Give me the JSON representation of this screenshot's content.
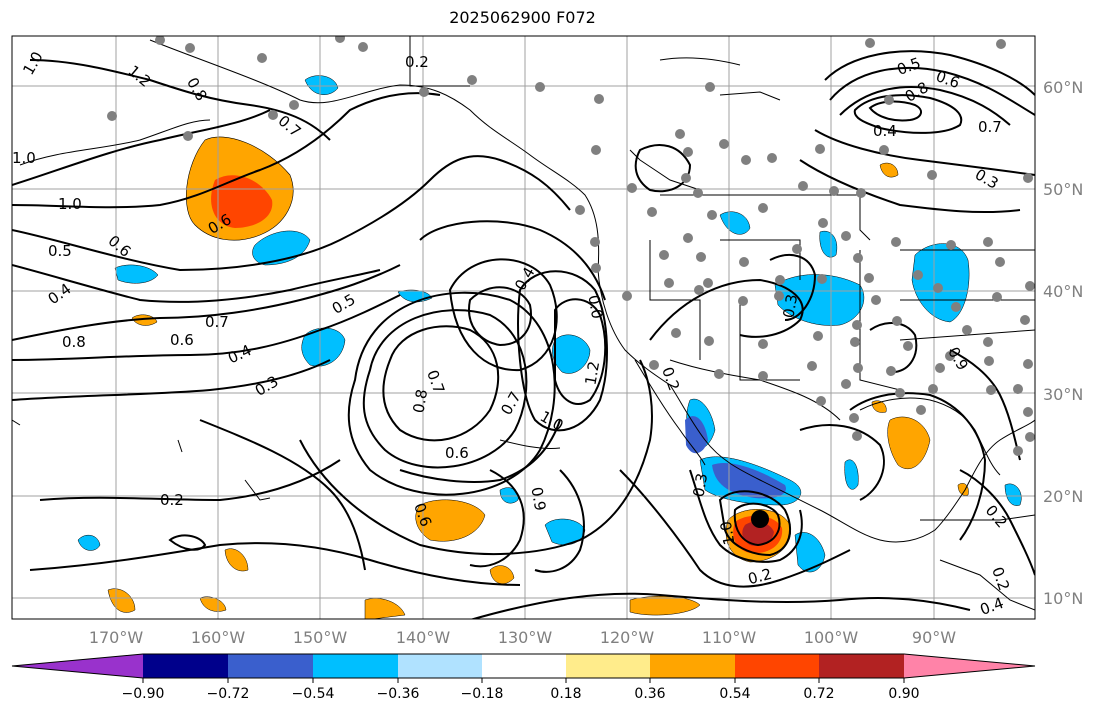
{
  "title": "2025062900 F072",
  "lat_labels": [
    "60°N",
    "50°N",
    "40°N",
    "30°N",
    "20°N",
    "10°N"
  ],
  "lon_labels": [
    "170°W",
    "160°W",
    "150°W",
    "140°W",
    "130°W",
    "120°W",
    "110°W",
    "100°W",
    "90°W"
  ],
  "colorbar": {
    "tick_labels": [
      "−0.90",
      "−0.72",
      "−0.54",
      "−0.36",
      "−0.18",
      "0.18",
      "0.36",
      "0.54",
      "0.72",
      "0.90"
    ],
    "colors": [
      "#9932cc",
      "#00008b",
      "#3a5fcd",
      "#00bfff",
      "#b0e2ff",
      "#ffffff",
      "#ffec8b",
      "#ffa500",
      "#ff4500",
      "#b22222",
      "#ff83a8"
    ]
  },
  "contour_labels": [
    {
      "text": "1.0"
    },
    {
      "text": "1.2"
    },
    {
      "text": "0.8"
    },
    {
      "text": "0.2"
    },
    {
      "text": "0.7"
    },
    {
      "text": "1.0"
    },
    {
      "text": "1.0"
    },
    {
      "text": "0.5"
    },
    {
      "text": "0.6"
    },
    {
      "text": "0.4"
    },
    {
      "text": "0.6"
    },
    {
      "text": "0.8"
    },
    {
      "text": "0.7"
    },
    {
      "text": "0.6"
    },
    {
      "text": "0.4"
    },
    {
      "text": "0.3"
    },
    {
      "text": "0.5"
    },
    {
      "text": "0.4"
    },
    {
      "text": "0.7"
    },
    {
      "text": "0.8"
    },
    {
      "text": "0.7"
    },
    {
      "text": "1.0"
    },
    {
      "text": "1.2"
    },
    {
      "text": "0.6"
    },
    {
      "text": "0.6"
    },
    {
      "text": "0.9"
    },
    {
      "text": "0.2"
    },
    {
      "text": "0.3"
    },
    {
      "text": "1.0"
    },
    {
      "text": "0.2"
    },
    {
      "text": "0.5"
    },
    {
      "text": "0.6"
    },
    {
      "text": "0.8"
    },
    {
      "text": "0.4"
    },
    {
      "text": "0.7"
    },
    {
      "text": "0.3"
    },
    {
      "text": "0.3"
    },
    {
      "text": "0.9"
    },
    {
      "text": "0.2"
    },
    {
      "text": "0.2"
    },
    {
      "text": "0.4"
    },
    {
      "text": "0.2"
    },
    {
      "text": "0.0"
    }
  ]
}
